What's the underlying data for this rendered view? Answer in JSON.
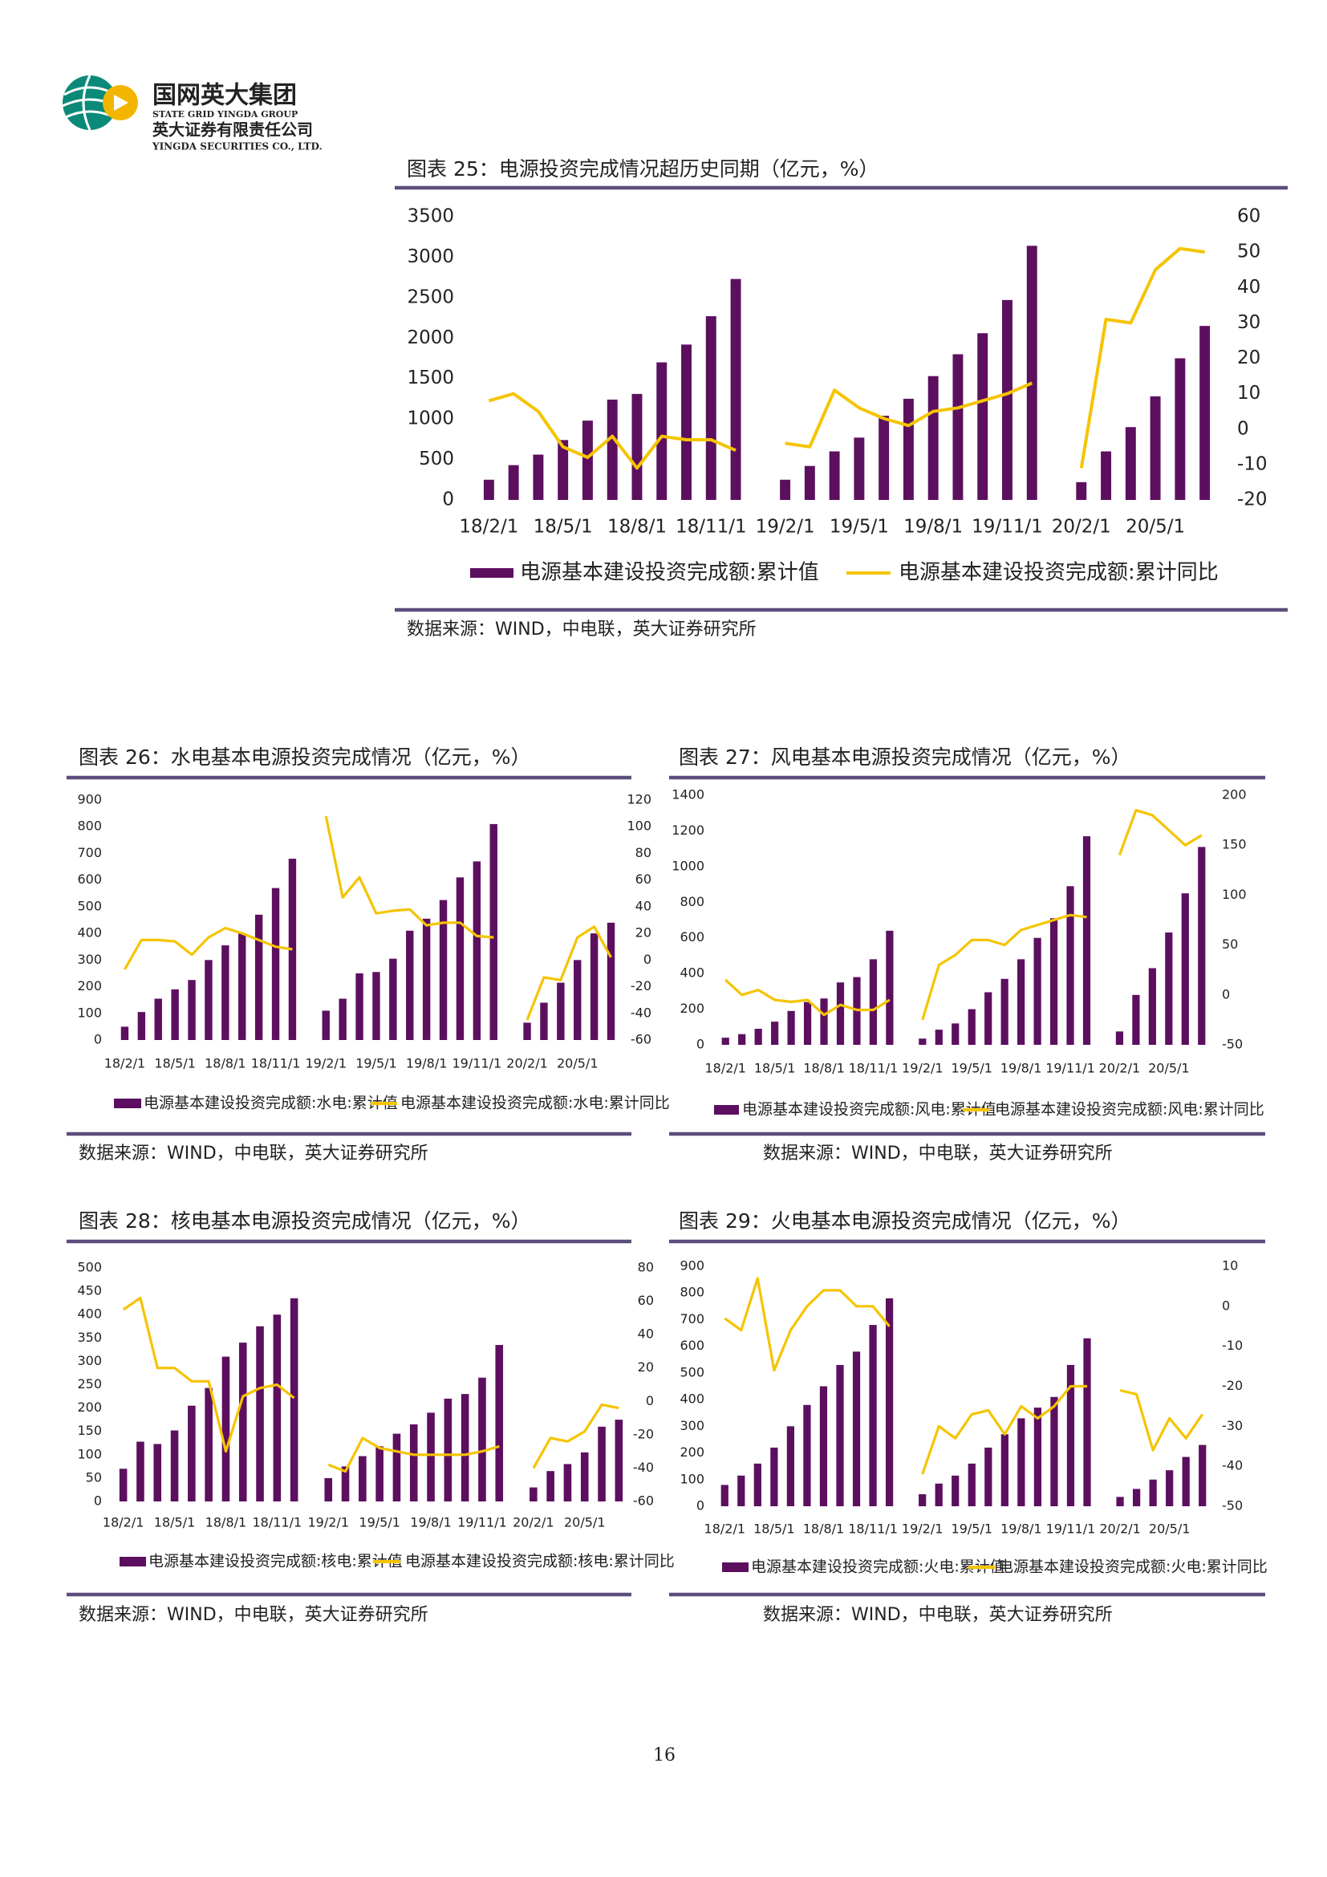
{
  "header": {
    "group_cn": "国网英大集团",
    "group_en": "STATE GRID YINGDA GROUP",
    "company_cn": "英大证券有限责任公司",
    "company_en": "YINGDA SECURITIES CO., LTD."
  },
  "page_number": "16",
  "chart_data": [
    {
      "type": "combo",
      "title": "图表 25：电源投资完成情况超历史同期（亿元，%）",
      "source": "数据来源：WIND，中电联，英大证券研究所",
      "categories": [
        "18/2/1",
        null,
        null,
        "18/5/1",
        null,
        null,
        "18/8/1",
        null,
        null,
        "18/11/1",
        null,
        null,
        "19/2/1",
        null,
        null,
        "19/5/1",
        null,
        null,
        "19/8/1",
        null,
        null,
        "19/11/1",
        null,
        null,
        "20/2/1",
        null,
        null,
        "20/5/1",
        null,
        null
      ],
      "series": [
        {
          "name": "电源基本建设投资完成额:累计值",
          "type": "bar",
          "color": "#5c0f5f",
          "values": [
            250,
            430,
            560,
            740,
            980,
            1240,
            1310,
            1700,
            1920,
            2270,
            2730,
            null,
            250,
            420,
            600,
            770,
            1040,
            1250,
            1530,
            1800,
            2060,
            2470,
            3140,
            null,
            220,
            600,
            900,
            1280,
            1750,
            2150
          ]
        },
        {
          "name": "电源基本建设投资完成额:累计同比",
          "type": "line",
          "axis": "y2",
          "color": "#f5c400",
          "values": [
            8,
            10,
            5,
            -5,
            -8,
            -2,
            -11,
            -2,
            -3,
            -3,
            -6,
            null,
            -4,
            -5,
            11,
            6,
            3,
            1,
            5,
            6,
            8,
            10,
            13,
            null,
            -11,
            31,
            30,
            45,
            51,
            50
          ]
        }
      ],
      "ylim": [
        0,
        3500
      ],
      "yticks": [
        0,
        500,
        1000,
        1500,
        2000,
        2500,
        3000,
        3500
      ],
      "y2lim": [
        -20,
        60
      ],
      "y2ticks": [
        -20,
        -10,
        0,
        10,
        20,
        30,
        40,
        50,
        60
      ]
    },
    {
      "type": "combo",
      "title": "图表 26：水电基本电源投资完成情况（亿元，%）",
      "source": "数据来源：WIND，中电联，英大证券研究所",
      "categories": [
        "18/2/1",
        null,
        null,
        "18/5/1",
        null,
        null,
        "18/8/1",
        null,
        null,
        "18/11/1",
        null,
        null,
        "19/2/1",
        null,
        null,
        "19/5/1",
        null,
        null,
        "19/8/1",
        null,
        null,
        "19/11/1",
        null,
        null,
        "20/2/1",
        null,
        null,
        "20/5/1",
        null,
        null
      ],
      "series": [
        {
          "name": "电源基本建设投资完成额:水电:累计值",
          "type": "bar",
          "color": "#5c0f5f",
          "values": [
            50,
            105,
            155,
            190,
            225,
            300,
            355,
            400,
            470,
            570,
            680,
            null,
            110,
            155,
            250,
            255,
            305,
            410,
            455,
            525,
            610,
            670,
            810,
            null,
            65,
            140,
            215,
            300,
            400,
            440
          ]
        },
        {
          "name": "电源基本建设投资完成额:水电:累计同比",
          "type": "line",
          "axis": "y2",
          "color": "#f5c400",
          "values": [
            -7,
            15,
            15,
            14,
            4,
            17,
            24,
            20,
            15,
            10,
            8,
            null,
            108,
            47,
            62,
            35,
            37,
            38,
            26,
            28,
            28,
            18,
            17,
            null,
            -45,
            -13,
            -15,
            17,
            25,
            2
          ]
        }
      ],
      "ylim": [
        0,
        900
      ],
      "yticks": [
        0,
        100,
        200,
        300,
        400,
        500,
        600,
        700,
        800,
        900
      ],
      "y2lim": [
        -60,
        120
      ],
      "y2ticks": [
        -60,
        -40,
        -20,
        0,
        20,
        40,
        60,
        80,
        100,
        120
      ]
    },
    {
      "type": "combo",
      "title": "图表 27：风电基本电源投资完成情况（亿元，%）",
      "source": "数据来源：WIND，中电联，英大证券研究所",
      "categories": [
        "18/2/1",
        null,
        null,
        "18/5/1",
        null,
        null,
        "18/8/1",
        null,
        null,
        "18/11/1",
        null,
        null,
        "19/2/1",
        null,
        null,
        "19/5/1",
        null,
        null,
        "19/8/1",
        null,
        null,
        "19/11/1",
        null,
        null,
        "20/2/1",
        null,
        null,
        "20/5/1",
        null,
        null
      ],
      "series": [
        {
          "name": "电源基本建设投资完成额:风电:累计值",
          "type": "bar",
          "color": "#5c0f5f",
          "values": [
            40,
            60,
            90,
            130,
            190,
            240,
            260,
            350,
            380,
            480,
            640,
            null,
            35,
            85,
            120,
            200,
            295,
            370,
            480,
            600,
            710,
            890,
            1170,
            null,
            75,
            280,
            430,
            630,
            850,
            1110
          ]
        },
        {
          "name": "电源基本建设投资完成额:风电:累计同比",
          "type": "line",
          "axis": "y2",
          "color": "#f5c400",
          "values": [
            15,
            0,
            5,
            -5,
            -7,
            -5,
            -20,
            -10,
            -15,
            -15,
            -5,
            null,
            -25,
            30,
            40,
            55,
            55,
            50,
            65,
            70,
            75,
            80,
            78,
            null,
            140,
            185,
            180,
            165,
            150,
            160
          ]
        }
      ],
      "ylim": [
        0,
        1400
      ],
      "yticks": [
        0,
        200,
        400,
        600,
        800,
        1000,
        1200,
        1400
      ],
      "y2lim": [
        -50,
        200
      ],
      "y2ticks": [
        -50,
        0,
        50,
        100,
        150,
        200
      ]
    },
    {
      "type": "combo",
      "title": "图表 28：核电基本电源投资完成情况（亿元，%）",
      "source": "数据来源：WIND，中电联，英大证券研究所",
      "categories": [
        "18/2/1",
        null,
        null,
        "18/5/1",
        null,
        null,
        "18/8/1",
        null,
        null,
        "18/11/1",
        null,
        null,
        "19/2/1",
        null,
        null,
        "19/5/1",
        null,
        null,
        "19/8/1",
        null,
        null,
        "19/11/1",
        null,
        null,
        "20/2/1",
        null,
        null,
        "20/5/1",
        null,
        null
      ],
      "series": [
        {
          "name": "电源基本建设投资完成额:核电:累计值",
          "type": "bar",
          "color": "#5c0f5f",
          "values": [
            70,
            128,
            123,
            152,
            205,
            243,
            310,
            340,
            375,
            400,
            435,
            null,
            50,
            75,
            97,
            118,
            145,
            165,
            190,
            220,
            230,
            265,
            335,
            null,
            30,
            65,
            80,
            105,
            160,
            175
          ]
        },
        {
          "name": "电源基本建设投资完成额:核电:累计同比",
          "type": "line",
          "axis": "y2",
          "color": "#f5c400",
          "values": [
            55,
            62,
            20,
            20,
            12,
            12,
            -30,
            3,
            8,
            10,
            2,
            null,
            -38,
            -42,
            -22,
            -28,
            -30,
            -32,
            -32,
            -32,
            -32,
            -30,
            -27,
            null,
            -40,
            -22,
            -24,
            -18,
            -2,
            -4
          ]
        }
      ],
      "ylim": [
        0,
        500
      ],
      "yticks": [
        0,
        50,
        100,
        150,
        200,
        250,
        300,
        350,
        400,
        450,
        500
      ],
      "y2lim": [
        -60,
        80
      ],
      "y2ticks": [
        -60,
        -40,
        -20,
        0,
        20,
        40,
        60,
        80
      ]
    },
    {
      "type": "combo",
      "title": "图表 29：火电基本电源投资完成情况（亿元，%）",
      "source": "数据来源：WIND，中电联，英大证券研究所",
      "categories": [
        "18/2/1",
        null,
        null,
        "18/5/1",
        null,
        null,
        "18/8/1",
        null,
        null,
        "18/11/1",
        null,
        null,
        "19/2/1",
        null,
        null,
        "19/5/1",
        null,
        null,
        "19/8/1",
        null,
        null,
        "19/11/1",
        null,
        null,
        "20/2/1",
        null,
        null,
        "20/5/1",
        null,
        null
      ],
      "series": [
        {
          "name": "电源基本建设投资完成额:火电:累计值",
          "type": "bar",
          "color": "#5c0f5f",
          "values": [
            80,
            115,
            160,
            220,
            300,
            380,
            450,
            530,
            580,
            680,
            780,
            null,
            45,
            85,
            115,
            160,
            220,
            270,
            330,
            370,
            410,
            530,
            630,
            null,
            35,
            65,
            100,
            135,
            185,
            230
          ]
        },
        {
          "name": "电源基本建设投资完成额:火电:累计同比",
          "type": "line",
          "axis": "y2",
          "color": "#f5c400",
          "values": [
            -3,
            -6,
            7,
            -16,
            -6,
            0,
            4,
            4,
            0,
            0,
            -5,
            null,
            -42,
            -30,
            -33,
            -27,
            -26,
            -32,
            -25,
            -28,
            -25,
            -20,
            -20,
            null,
            -21,
            -22,
            -36,
            -28,
            -33,
            -27
          ]
        }
      ],
      "ylim": [
        0,
        900
      ],
      "yticks": [
        0,
        100,
        200,
        300,
        400,
        500,
        600,
        700,
        800,
        900
      ],
      "y2lim": [
        -50,
        10
      ],
      "y2ticks": [
        -50,
        -40,
        -30,
        -20,
        -10,
        0,
        10
      ]
    }
  ]
}
